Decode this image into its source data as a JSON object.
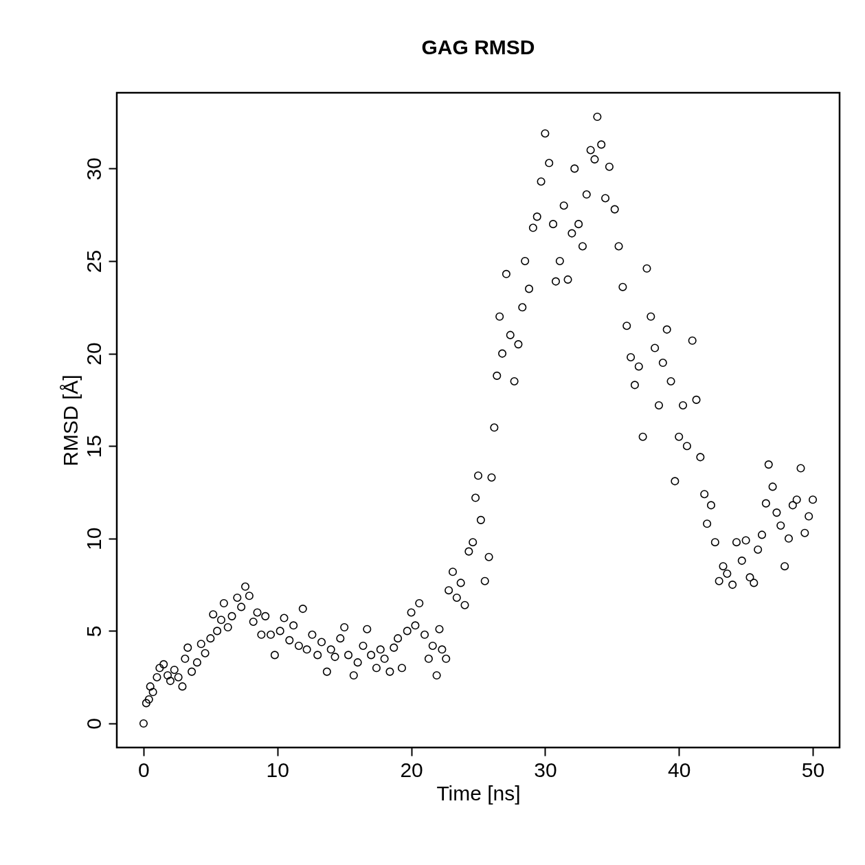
{
  "chart_data": {
    "type": "scatter",
    "title": "GAG RMSD",
    "xlabel": "Time [ns]",
    "ylabel": "RMSD [Å]",
    "xlim": [
      -2,
      52
    ],
    "ylim": [
      -1.3,
      34.1
    ],
    "xticks": [
      0,
      10,
      20,
      30,
      40,
      50
    ],
    "yticks": [
      0,
      5,
      10,
      15,
      20,
      25,
      30
    ],
    "grid": false,
    "marker": "circle",
    "series": [
      {
        "color": "#000000",
        "x": [
          0,
          0.2,
          0.4,
          0.5,
          0.7,
          1,
          1.2,
          1.5,
          1.8,
          2,
          2.3,
          2.6,
          2.9,
          3.1,
          3.3,
          3.6,
          4,
          4.3,
          4.6,
          5,
          5.2,
          5.5,
          5.8,
          6,
          6.3,
          6.6,
          7,
          7.3,
          7.6,
          7.9,
          8.2,
          8.5,
          8.8,
          9.1,
          9.5,
          9.8,
          10.2,
          10.5,
          10.9,
          11.2,
          11.6,
          11.9,
          12.2,
          12.6,
          13,
          13.3,
          13.7,
          14,
          14.3,
          14.7,
          15,
          15.3,
          15.7,
          16,
          16.4,
          16.7,
          17,
          17.4,
          17.7,
          18,
          18.4,
          18.7,
          19,
          19.3,
          19.7,
          20,
          20.3,
          20.6,
          21,
          21.3,
          21.6,
          21.9,
          22.1,
          22.3,
          22.6,
          22.8,
          23.1,
          23.4,
          23.7,
          24,
          24.3,
          24.6,
          24.8,
          25,
          25.2,
          25.5,
          25.8,
          26,
          26.2,
          26.4,
          26.6,
          26.8,
          27.1,
          27.4,
          27.7,
          28,
          28.3,
          28.5,
          28.8,
          29.1,
          29.4,
          29.7,
          30,
          30.3,
          30.6,
          30.8,
          31.1,
          31.4,
          31.7,
          32,
          32.2,
          32.5,
          32.8,
          33.1,
          33.4,
          33.7,
          33.9,
          34.2,
          34.5,
          34.8,
          35.2,
          35.5,
          35.8,
          36.1,
          36.4,
          36.7,
          37,
          37.3,
          37.6,
          37.9,
          38.2,
          38.5,
          38.8,
          39.1,
          39.4,
          39.7,
          40,
          40.3,
          40.6,
          41,
          41.3,
          41.6,
          41.9,
          42.1,
          42.4,
          42.7,
          43,
          43.3,
          43.6,
          44,
          44.3,
          44.7,
          45,
          45.3,
          45.6,
          45.9,
          46.2,
          46.5,
          46.7,
          47,
          47.3,
          47.6,
          47.9,
          48.2,
          48.5,
          48.8,
          49.1,
          49.4,
          49.7,
          50
        ],
        "values": [
          0,
          1.1,
          1.3,
          2.0,
          1.7,
          2.5,
          3.0,
          3.2,
          2.6,
          2.3,
          2.9,
          2.5,
          2.0,
          3.5,
          4.1,
          2.8,
          3.3,
          4.3,
          3.8,
          4.6,
          5.9,
          5.0,
          5.6,
          6.5,
          5.2,
          5.8,
          6.8,
          6.3,
          7.4,
          6.9,
          5.5,
          6.0,
          4.8,
          5.8,
          4.8,
          3.7,
          5.0,
          5.7,
          4.5,
          5.3,
          4.2,
          6.2,
          4.0,
          4.8,
          3.7,
          4.4,
          2.8,
          4.0,
          3.6,
          4.6,
          5.2,
          3.7,
          2.6,
          3.3,
          4.2,
          5.1,
          3.7,
          3.0,
          4.0,
          3.5,
          2.8,
          4.1,
          4.6,
          3.0,
          5.0,
          6.0,
          5.3,
          6.5,
          4.8,
          3.5,
          4.2,
          2.6,
          5.1,
          4.0,
          3.5,
          7.2,
          8.2,
          6.8,
          7.6,
          6.4,
          9.3,
          9.8,
          12.2,
          13.4,
          11.0,
          7.7,
          9.0,
          13.3,
          16.0,
          18.8,
          22.0,
          20.0,
          24.3,
          21.0,
          18.5,
          20.5,
          22.5,
          25.0,
          23.5,
          26.8,
          27.4,
          29.3,
          31.9,
          30.3,
          27.0,
          23.9,
          25.0,
          28.0,
          24.0,
          26.5,
          30.0,
          27.0,
          25.8,
          28.6,
          31.0,
          30.5,
          32.8,
          31.3,
          28.4,
          30.1,
          27.8,
          25.8,
          23.6,
          21.5,
          19.8,
          18.3,
          19.3,
          15.5,
          24.6,
          22.0,
          20.3,
          17.2,
          19.5,
          21.3,
          18.5,
          13.1,
          15.5,
          17.2,
          15.0,
          20.7,
          17.5,
          14.4,
          12.4,
          10.8,
          11.8,
          9.8,
          7.7,
          8.5,
          8.1,
          7.5,
          9.8,
          8.8,
          9.9,
          7.9,
          7.6,
          9.4,
          10.2,
          11.9,
          14.0,
          12.8,
          11.4,
          10.7,
          8.5,
          10.0,
          11.8,
          12.1,
          13.8,
          10.3,
          11.2,
          12.1
        ]
      }
    ]
  }
}
